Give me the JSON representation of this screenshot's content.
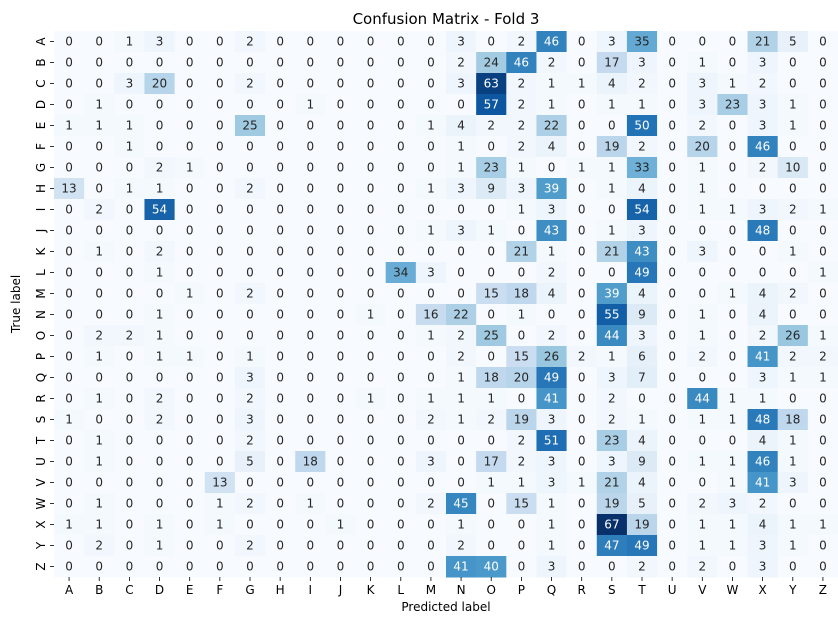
{
  "chart_data": {
    "type": "heatmap",
    "title": "Confusion Matrix - Fold 3",
    "xlabel": "Predicted label",
    "ylabel": "True label",
    "x_categories": [
      "A",
      "B",
      "C",
      "D",
      "E",
      "F",
      "G",
      "H",
      "I",
      "J",
      "K",
      "L",
      "M",
      "N",
      "O",
      "P",
      "Q",
      "R",
      "S",
      "T",
      "U",
      "V",
      "W",
      "X",
      "Y",
      "Z"
    ],
    "y_categories": [
      "A",
      "B",
      "C",
      "D",
      "E",
      "F",
      "G",
      "H",
      "I",
      "J",
      "K",
      "L",
      "M",
      "N",
      "O",
      "P",
      "Q",
      "R",
      "S",
      "T",
      "U",
      "V",
      "W",
      "X",
      "Y",
      "Z"
    ],
    "colormap": "Blues",
    "vmin": 0,
    "vmax": 67,
    "colorbar": false,
    "values": [
      [
        0,
        0,
        1,
        3,
        0,
        0,
        2,
        0,
        0,
        0,
        0,
        0,
        0,
        3,
        0,
        2,
        46,
        0,
        3,
        35,
        0,
        0,
        0,
        21,
        5,
        0
      ],
      [
        0,
        0,
        0,
        0,
        0,
        0,
        0,
        0,
        0,
        0,
        0,
        0,
        0,
        2,
        24,
        46,
        2,
        0,
        17,
        3,
        0,
        1,
        0,
        3,
        0,
        0
      ],
      [
        0,
        0,
        3,
        20,
        0,
        0,
        2,
        0,
        0,
        0,
        0,
        0,
        0,
        3,
        63,
        2,
        1,
        1,
        4,
        2,
        0,
        3,
        1,
        2,
        0,
        0
      ],
      [
        0,
        1,
        0,
        0,
        0,
        0,
        0,
        0,
        1,
        0,
        0,
        0,
        0,
        0,
        57,
        2,
        1,
        0,
        1,
        1,
        0,
        3,
        23,
        3,
        1,
        0
      ],
      [
        1,
        1,
        1,
        0,
        0,
        0,
        25,
        0,
        0,
        0,
        0,
        0,
        1,
        4,
        2,
        2,
        22,
        0,
        0,
        50,
        0,
        2,
        0,
        3,
        1,
        0
      ],
      [
        0,
        0,
        1,
        0,
        0,
        0,
        0,
        0,
        0,
        0,
        0,
        0,
        0,
        1,
        0,
        2,
        4,
        0,
        19,
        2,
        0,
        20,
        0,
        46,
        0,
        0
      ],
      [
        0,
        0,
        0,
        2,
        1,
        0,
        0,
        0,
        0,
        0,
        0,
        0,
        0,
        1,
        23,
        1,
        0,
        1,
        1,
        33,
        0,
        1,
        0,
        2,
        10,
        0
      ],
      [
        13,
        0,
        1,
        1,
        0,
        0,
        2,
        0,
        0,
        0,
        0,
        0,
        1,
        3,
        9,
        3,
        39,
        0,
        1,
        4,
        0,
        1,
        0,
        0,
        0,
        0
      ],
      [
        0,
        2,
        0,
        54,
        0,
        0,
        0,
        0,
        0,
        0,
        0,
        0,
        0,
        0,
        0,
        1,
        3,
        0,
        0,
        54,
        0,
        1,
        1,
        3,
        2,
        1
      ],
      [
        0,
        0,
        0,
        0,
        0,
        0,
        0,
        0,
        0,
        0,
        0,
        0,
        1,
        3,
        1,
        0,
        43,
        0,
        1,
        3,
        0,
        0,
        0,
        48,
        0,
        0
      ],
      [
        0,
        1,
        0,
        2,
        0,
        0,
        0,
        0,
        0,
        0,
        0,
        0,
        0,
        0,
        0,
        21,
        1,
        0,
        21,
        43,
        0,
        3,
        0,
        0,
        1,
        0
      ],
      [
        0,
        0,
        0,
        1,
        0,
        0,
        0,
        0,
        0,
        0,
        0,
        34,
        3,
        0,
        0,
        0,
        2,
        0,
        0,
        49,
        0,
        0,
        0,
        0,
        0,
        1
      ],
      [
        0,
        0,
        0,
        0,
        1,
        0,
        2,
        0,
        0,
        0,
        0,
        0,
        0,
        0,
        15,
        18,
        4,
        0,
        39,
        4,
        0,
        0,
        1,
        4,
        2,
        0
      ],
      [
        0,
        0,
        0,
        1,
        0,
        0,
        0,
        0,
        0,
        0,
        1,
        0,
        16,
        22,
        0,
        1,
        0,
        0,
        55,
        9,
        0,
        1,
        0,
        4,
        0,
        0
      ],
      [
        0,
        2,
        2,
        1,
        0,
        0,
        0,
        0,
        0,
        0,
        0,
        0,
        1,
        2,
        25,
        0,
        2,
        0,
        44,
        3,
        0,
        1,
        0,
        2,
        26,
        1
      ],
      [
        0,
        1,
        0,
        1,
        1,
        0,
        1,
        0,
        0,
        0,
        0,
        0,
        0,
        2,
        0,
        15,
        26,
        2,
        1,
        6,
        0,
        2,
        0,
        41,
        2,
        2
      ],
      [
        0,
        0,
        0,
        0,
        0,
        0,
        3,
        0,
        0,
        0,
        0,
        0,
        0,
        1,
        18,
        20,
        49,
        0,
        3,
        7,
        0,
        0,
        0,
        3,
        1,
        1
      ],
      [
        0,
        1,
        0,
        2,
        0,
        0,
        2,
        0,
        0,
        0,
        1,
        0,
        1,
        1,
        1,
        0,
        41,
        0,
        2,
        0,
        0,
        44,
        1,
        1,
        0,
        0
      ],
      [
        1,
        0,
        0,
        2,
        0,
        0,
        3,
        0,
        0,
        0,
        0,
        0,
        2,
        1,
        2,
        19,
        3,
        0,
        2,
        1,
        0,
        1,
        1,
        48,
        18,
        0
      ],
      [
        0,
        1,
        0,
        0,
        0,
        0,
        2,
        0,
        0,
        0,
        0,
        0,
        0,
        0,
        0,
        2,
        51,
        0,
        23,
        4,
        0,
        0,
        0,
        4,
        1,
        0
      ],
      [
        0,
        1,
        0,
        0,
        0,
        0,
        5,
        0,
        18,
        0,
        0,
        0,
        3,
        0,
        17,
        2,
        3,
        0,
        3,
        9,
        0,
        1,
        1,
        46,
        1,
        0
      ],
      [
        0,
        0,
        0,
        0,
        0,
        13,
        0,
        0,
        0,
        0,
        0,
        0,
        0,
        0,
        1,
        1,
        3,
        1,
        21,
        4,
        0,
        0,
        1,
        41,
        3,
        0
      ],
      [
        0,
        1,
        0,
        0,
        0,
        1,
        2,
        0,
        1,
        0,
        0,
        0,
        2,
        45,
        0,
        15,
        1,
        0,
        19,
        5,
        0,
        2,
        3,
        2,
        0,
        0
      ],
      [
        1,
        1,
        0,
        1,
        0,
        1,
        0,
        0,
        0,
        1,
        0,
        0,
        0,
        1,
        0,
        0,
        1,
        0,
        67,
        19,
        0,
        1,
        1,
        4,
        1,
        1
      ],
      [
        0,
        2,
        0,
        1,
        0,
        0,
        2,
        0,
        0,
        0,
        0,
        0,
        0,
        2,
        0,
        0,
        1,
        0,
        47,
        49,
        0,
        1,
        1,
        3,
        1,
        0
      ],
      [
        0,
        0,
        0,
        0,
        0,
        0,
        0,
        0,
        0,
        0,
        0,
        0,
        0,
        41,
        40,
        0,
        3,
        0,
        0,
        2,
        0,
        2,
        0,
        3,
        0,
        0
      ]
    ]
  }
}
